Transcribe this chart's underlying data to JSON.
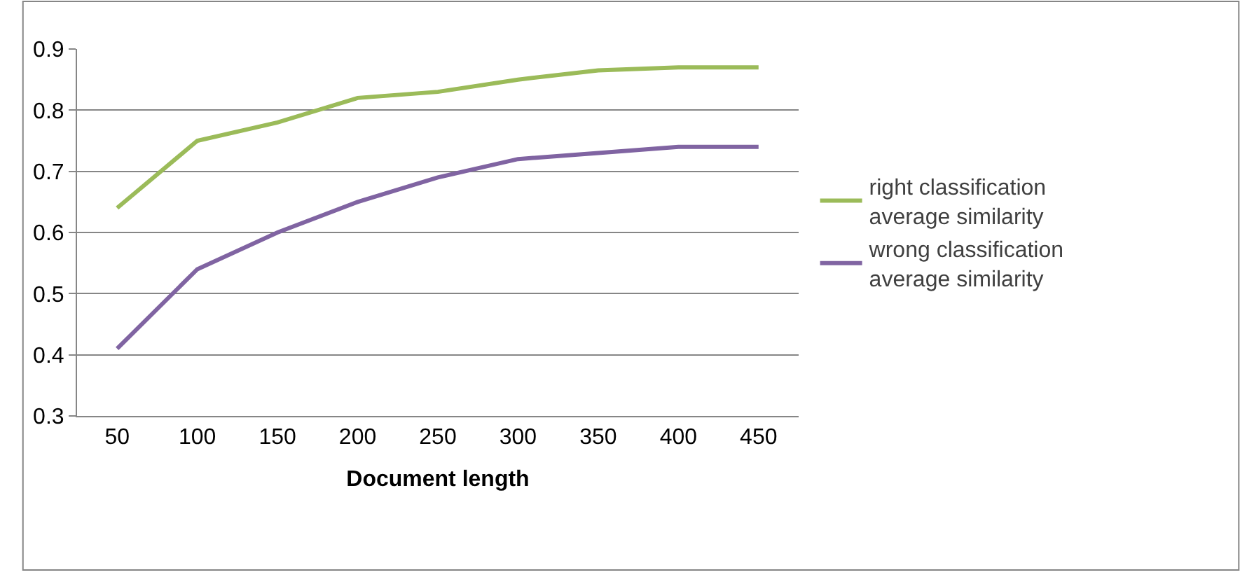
{
  "chart_data": {
    "type": "line",
    "xlabel": "Document length",
    "categories": [
      "50",
      "100",
      "150",
      "200",
      "250",
      "300",
      "350",
      "400",
      "450"
    ],
    "series": [
      {
        "name": "right classification average similarity",
        "color": "#9bbb59",
        "values": [
          0.64,
          0.75,
          0.78,
          0.82,
          0.83,
          0.85,
          0.865,
          0.87,
          0.87
        ]
      },
      {
        "name": "wrong classification average similarity",
        "color": "#8064a2",
        "values": [
          0.41,
          0.54,
          0.6,
          0.65,
          0.69,
          0.72,
          0.73,
          0.74,
          0.74
        ]
      }
    ],
    "ylim": [
      0.3,
      0.9
    ],
    "yticks": [
      0.3,
      0.4,
      0.5,
      0.6,
      0.7,
      0.8,
      0.9
    ],
    "grid": "y",
    "legend": "right",
    "marker": "none",
    "line_style": "solid"
  }
}
